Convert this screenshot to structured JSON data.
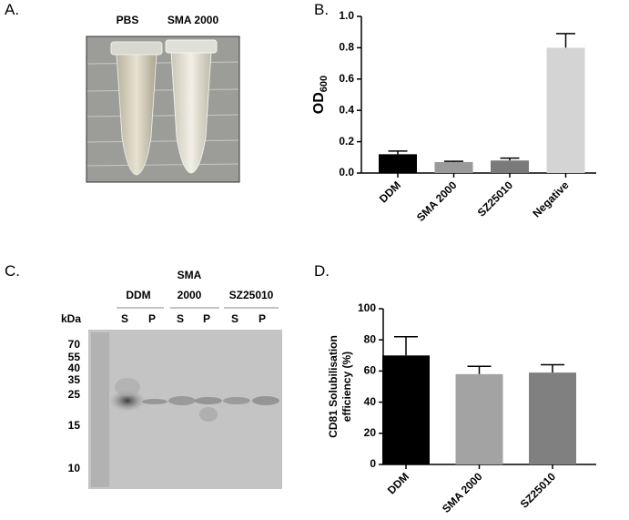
{
  "panel_labels": [
    "A.",
    "B.",
    "C.",
    "D."
  ],
  "panel_a": {
    "tube_labels": [
      "PBS",
      "SMA 2000"
    ]
  },
  "panel_c": {
    "lane_groups": [
      [
        "DDM"
      ],
      [
        "SMA",
        "2000"
      ],
      [
        "SZ25010"
      ]
    ],
    "lanes": [
      "S",
      "P",
      "S",
      "P",
      "S",
      "P"
    ],
    "marker_unit": "kDa",
    "markers": [
      70,
      55,
      40,
      35,
      25,
      15,
      10
    ]
  },
  "chart_data": [
    {
      "type": "bar",
      "ylabel": "OD",
      "ylabel_subscript": "600",
      "categories": [
        "DDM",
        "SMA 2000",
        "SZ25010",
        "Negative"
      ],
      "values": [
        0.12,
        0.07,
        0.08,
        0.8
      ],
      "errors": [
        0.02,
        0.005,
        0.015,
        0.09
      ],
      "colors": [
        "#000000",
        "#9a9a9a",
        "#7a7a7a",
        "#d4d4d4"
      ],
      "ylim": [
        0,
        1.0
      ],
      "yticks": [
        {
          "value": 0,
          "label": "0.0"
        },
        0.2,
        0.4,
        0.6,
        0.8,
        {
          "value": 1.0,
          "label": "1.0"
        }
      ]
    },
    {
      "type": "bar",
      "ylabel": [
        "CD81 Solubilisation",
        "efficiency (%)"
      ],
      "categories": [
        "DDM",
        "SMA 2000",
        "SZ25010"
      ],
      "values": [
        70,
        58,
        59
      ],
      "errors": [
        12,
        5,
        5
      ],
      "colors": [
        "#000000",
        "#a3a3a3",
        "#808080"
      ],
      "ylim": [
        0,
        100
      ],
      "yticks": [
        0,
        20,
        40,
        60,
        80,
        100
      ]
    }
  ]
}
